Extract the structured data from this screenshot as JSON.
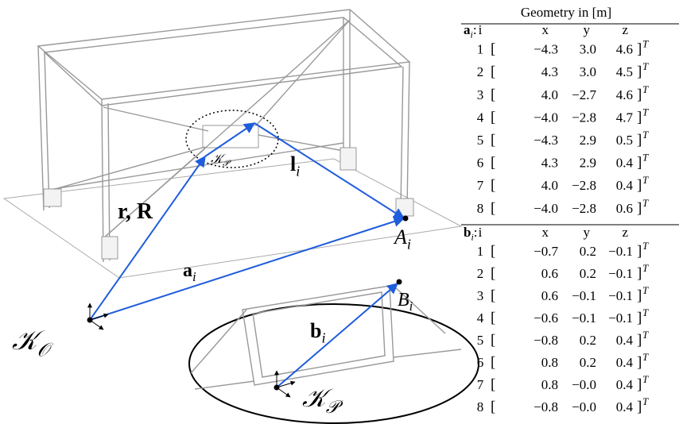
{
  "labels": {
    "rR": {
      "text": "r, R"
    },
    "l": {
      "text": "l",
      "sub": "i"
    },
    "a": {
      "text": "a",
      "sub": "i"
    },
    "A": {
      "text": "A",
      "sub": "i"
    },
    "KPsmall": {
      "text": "𝒦",
      "sub": "𝒫"
    },
    "KO": {
      "text": "𝒦",
      "sub": "𝒪"
    },
    "b": {
      "text": "b",
      "sub": "i"
    },
    "B": {
      "text": "B",
      "sub": "i"
    },
    "KP": {
      "text": "𝒦",
      "sub": "𝒫"
    }
  },
  "table": {
    "title": "Geometry in [m]",
    "open": "[",
    "close": "]",
    "transpose": "T",
    "sections": [
      {
        "label": {
          "text": "a",
          "sub": "i",
          "suffix": ":"
        },
        "columns": [
          "i",
          "x",
          "y",
          "z"
        ],
        "rows": [
          [
            "1",
            "−4.3",
            "3.0",
            "4.6"
          ],
          [
            "2",
            "4.3",
            "3.0",
            "4.5"
          ],
          [
            "3",
            "4.0",
            "−2.7",
            "4.6"
          ],
          [
            "4",
            "−4.0",
            "−2.8",
            "4.7"
          ],
          [
            "5",
            "−4.3",
            "2.9",
            "0.5"
          ],
          [
            "6",
            "4.3",
            "2.9",
            "0.4"
          ],
          [
            "7",
            "4.0",
            "−2.8",
            "0.4"
          ],
          [
            "8",
            "−4.0",
            "−2.8",
            "0.6"
          ]
        ]
      },
      {
        "label": {
          "text": "b",
          "sub": "i",
          "suffix": ":"
        },
        "columns": [
          "i",
          "x",
          "y",
          "z"
        ],
        "rows": [
          [
            "1",
            "−0.7",
            "0.2",
            "−0.1"
          ],
          [
            "2",
            "0.6",
            "0.2",
            "−0.1"
          ],
          [
            "3",
            "0.6",
            "−0.1",
            "−0.1"
          ],
          [
            "4",
            "−0.6",
            "−0.1",
            "−0.1"
          ],
          [
            "5",
            "−0.8",
            "0.2",
            "0.4"
          ],
          [
            "6",
            "0.8",
            "0.2",
            "0.4"
          ],
          [
            "7",
            "0.8",
            "−0.0",
            "0.4"
          ],
          [
            "8",
            "−0.8",
            "−0.0",
            "0.4"
          ]
        ]
      }
    ]
  }
}
